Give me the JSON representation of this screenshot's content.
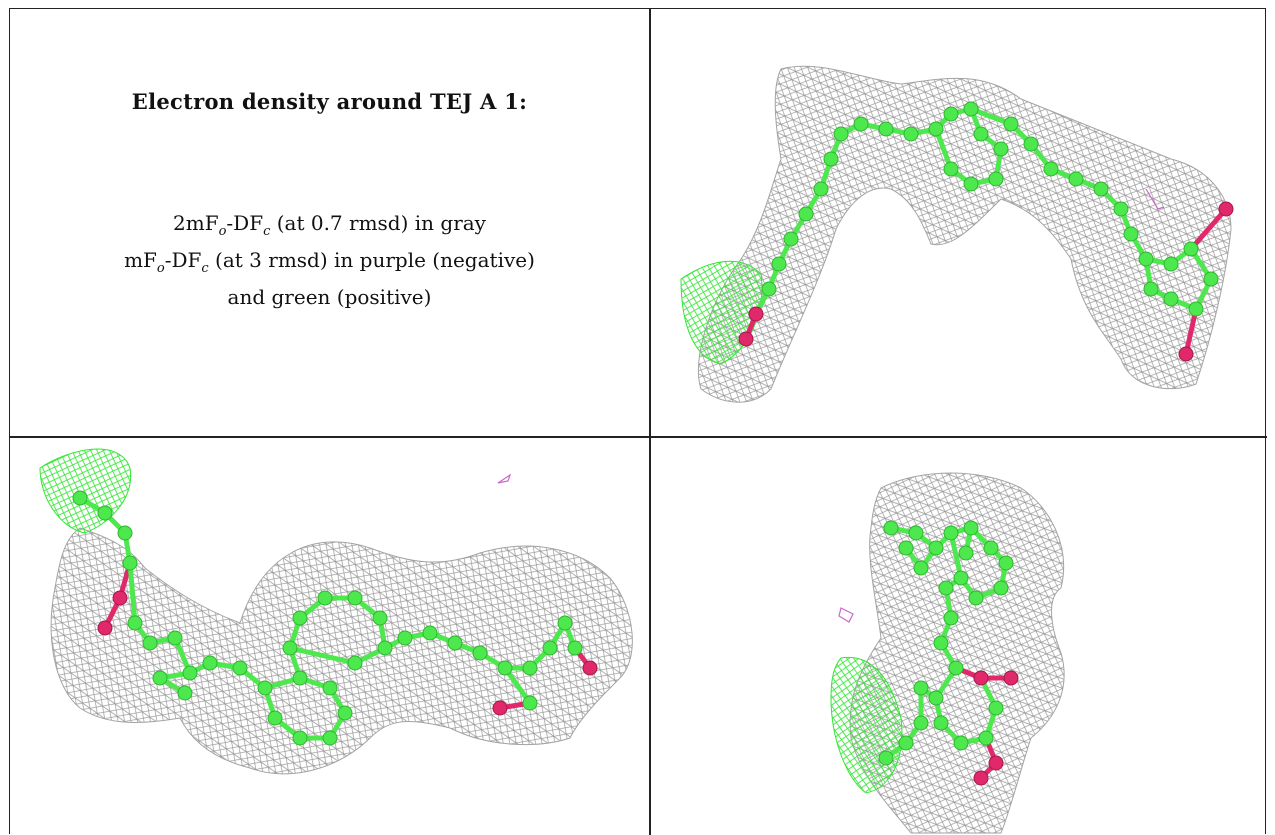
{
  "caption": {
    "title": "Electron density around TEJ A 1:",
    "line1_a": "2mF",
    "line1_sub1": "o",
    "line1_b": "-DF",
    "line1_sub2": "c",
    "line1_c": " (at 0.7 rmsd) in gray",
    "line2_a": "mF",
    "line2_sub1": "o",
    "line2_b": "-DF",
    "line2_sub2": "c",
    "line2_c": " (at 3 rmsd) in purple (negative)",
    "line3": "and green (positive)"
  },
  "colors": {
    "density_2fofc": "#8c8c8c",
    "density_positive": "#33e633",
    "density_negative": "#cc66cc",
    "carbon": "#4de84d",
    "oxygen": "#e0286a",
    "border": "#222222"
  },
  "views": [
    {
      "name": "view-1",
      "atoms_carbon": 30,
      "atoms_oxygen": 4
    },
    {
      "name": "view-2",
      "atoms_carbon": 34,
      "atoms_oxygen": 4
    },
    {
      "name": "view-3",
      "atoms_carbon": 30,
      "atoms_oxygen": 4
    }
  ]
}
